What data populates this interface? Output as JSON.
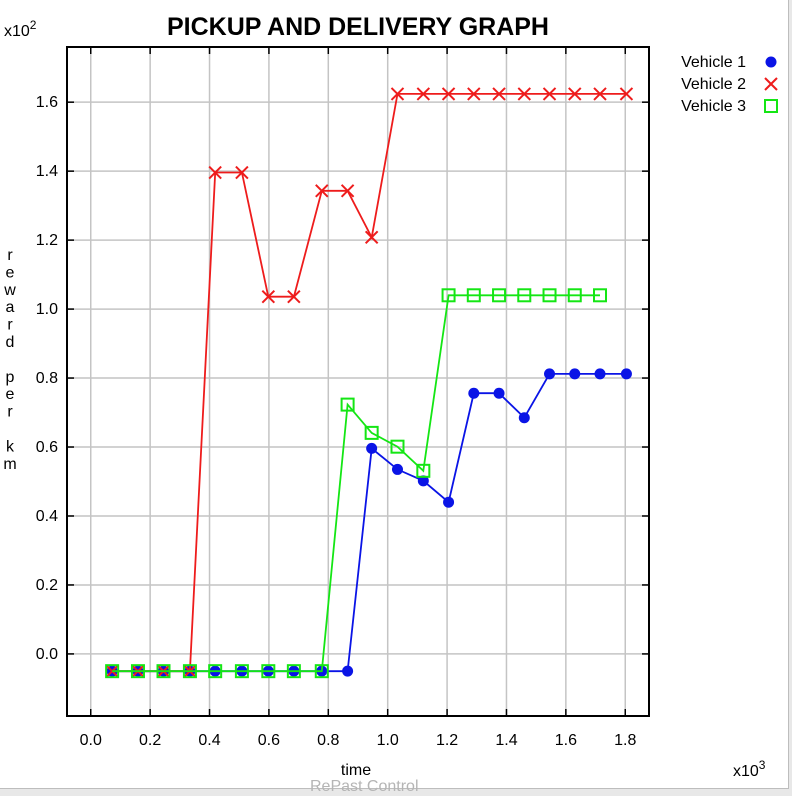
{
  "chart_data": {
    "type": "line",
    "title": "PICKUP AND DELIVERY GRAPH",
    "xlabel": "time",
    "ylabel": "reward per km",
    "x_multiplier_label": "x10^3",
    "y_multiplier_label": "x10^2",
    "xlim": [
      -0.08,
      1.88
    ],
    "ylim": [
      -0.18,
      1.76
    ],
    "x_ticks": [
      0.0,
      0.2,
      0.4,
      0.6,
      0.8,
      1.0,
      1.2,
      1.4,
      1.6,
      1.8
    ],
    "x_tick_labels": [
      "0.0",
      "0.2",
      "0.4",
      "0.6",
      "0.8",
      "1.0",
      "1.2",
      "1.4",
      "1.6",
      "1.8"
    ],
    "y_ticks": [
      0.0,
      0.2,
      0.4,
      0.6,
      0.8,
      1.0,
      1.2,
      1.4,
      1.6
    ],
    "y_tick_labels": [
      "0.0",
      "0.2",
      "0.4",
      "0.6",
      "0.8",
      "1.0",
      "1.2",
      "1.4",
      "1.6"
    ],
    "grid": true,
    "legend_position": "outside-top-right",
    "series": [
      {
        "name": "Vehicle 1",
        "color": "#0a14e6",
        "marker": "filled-circle",
        "x": [
          0.072,
          0.159,
          0.245,
          0.334,
          0.419,
          0.509,
          0.598,
          0.684,
          0.778,
          0.865,
          0.946,
          1.033,
          1.12,
          1.205,
          1.29,
          1.375,
          1.46,
          1.545,
          1.63,
          1.715,
          1.804
        ],
        "y": [
          -0.05,
          -0.05,
          -0.05,
          -0.05,
          -0.05,
          -0.05,
          -0.05,
          -0.05,
          -0.05,
          -0.05,
          0.596,
          0.535,
          0.502,
          0.44,
          0.756,
          0.756,
          0.685,
          0.812,
          0.812,
          0.812,
          0.812
        ]
      },
      {
        "name": "Vehicle 2",
        "color": "#ee1c1c",
        "marker": "x",
        "x": [
          0.072,
          0.159,
          0.245,
          0.334,
          0.419,
          0.509,
          0.598,
          0.684,
          0.778,
          0.865,
          0.946,
          1.033,
          1.12,
          1.205,
          1.29,
          1.375,
          1.46,
          1.545,
          1.63,
          1.715,
          1.804
        ],
        "y": [
          -0.05,
          -0.05,
          -0.05,
          -0.05,
          1.396,
          1.396,
          1.036,
          1.036,
          1.343,
          1.343,
          1.208,
          1.624,
          1.624,
          1.624,
          1.624,
          1.624,
          1.624,
          1.624,
          1.624,
          1.624,
          1.624
        ]
      },
      {
        "name": "Vehicle 3",
        "color": "#14e614",
        "marker": "open-square",
        "x": [
          0.072,
          0.159,
          0.245,
          0.334,
          0.419,
          0.509,
          0.598,
          0.684,
          0.778,
          0.865,
          0.946,
          1.033,
          1.12,
          1.205,
          1.29,
          1.375,
          1.46,
          1.545,
          1.63,
          1.715
        ],
        "y": [
          -0.05,
          -0.05,
          -0.05,
          -0.05,
          -0.05,
          -0.05,
          -0.05,
          -0.05,
          -0.05,
          0.723,
          0.641,
          0.601,
          0.531,
          1.04,
          1.04,
          1.04,
          1.04,
          1.04,
          1.04,
          1.04
        ]
      }
    ]
  },
  "background_caption": "RePast Control"
}
